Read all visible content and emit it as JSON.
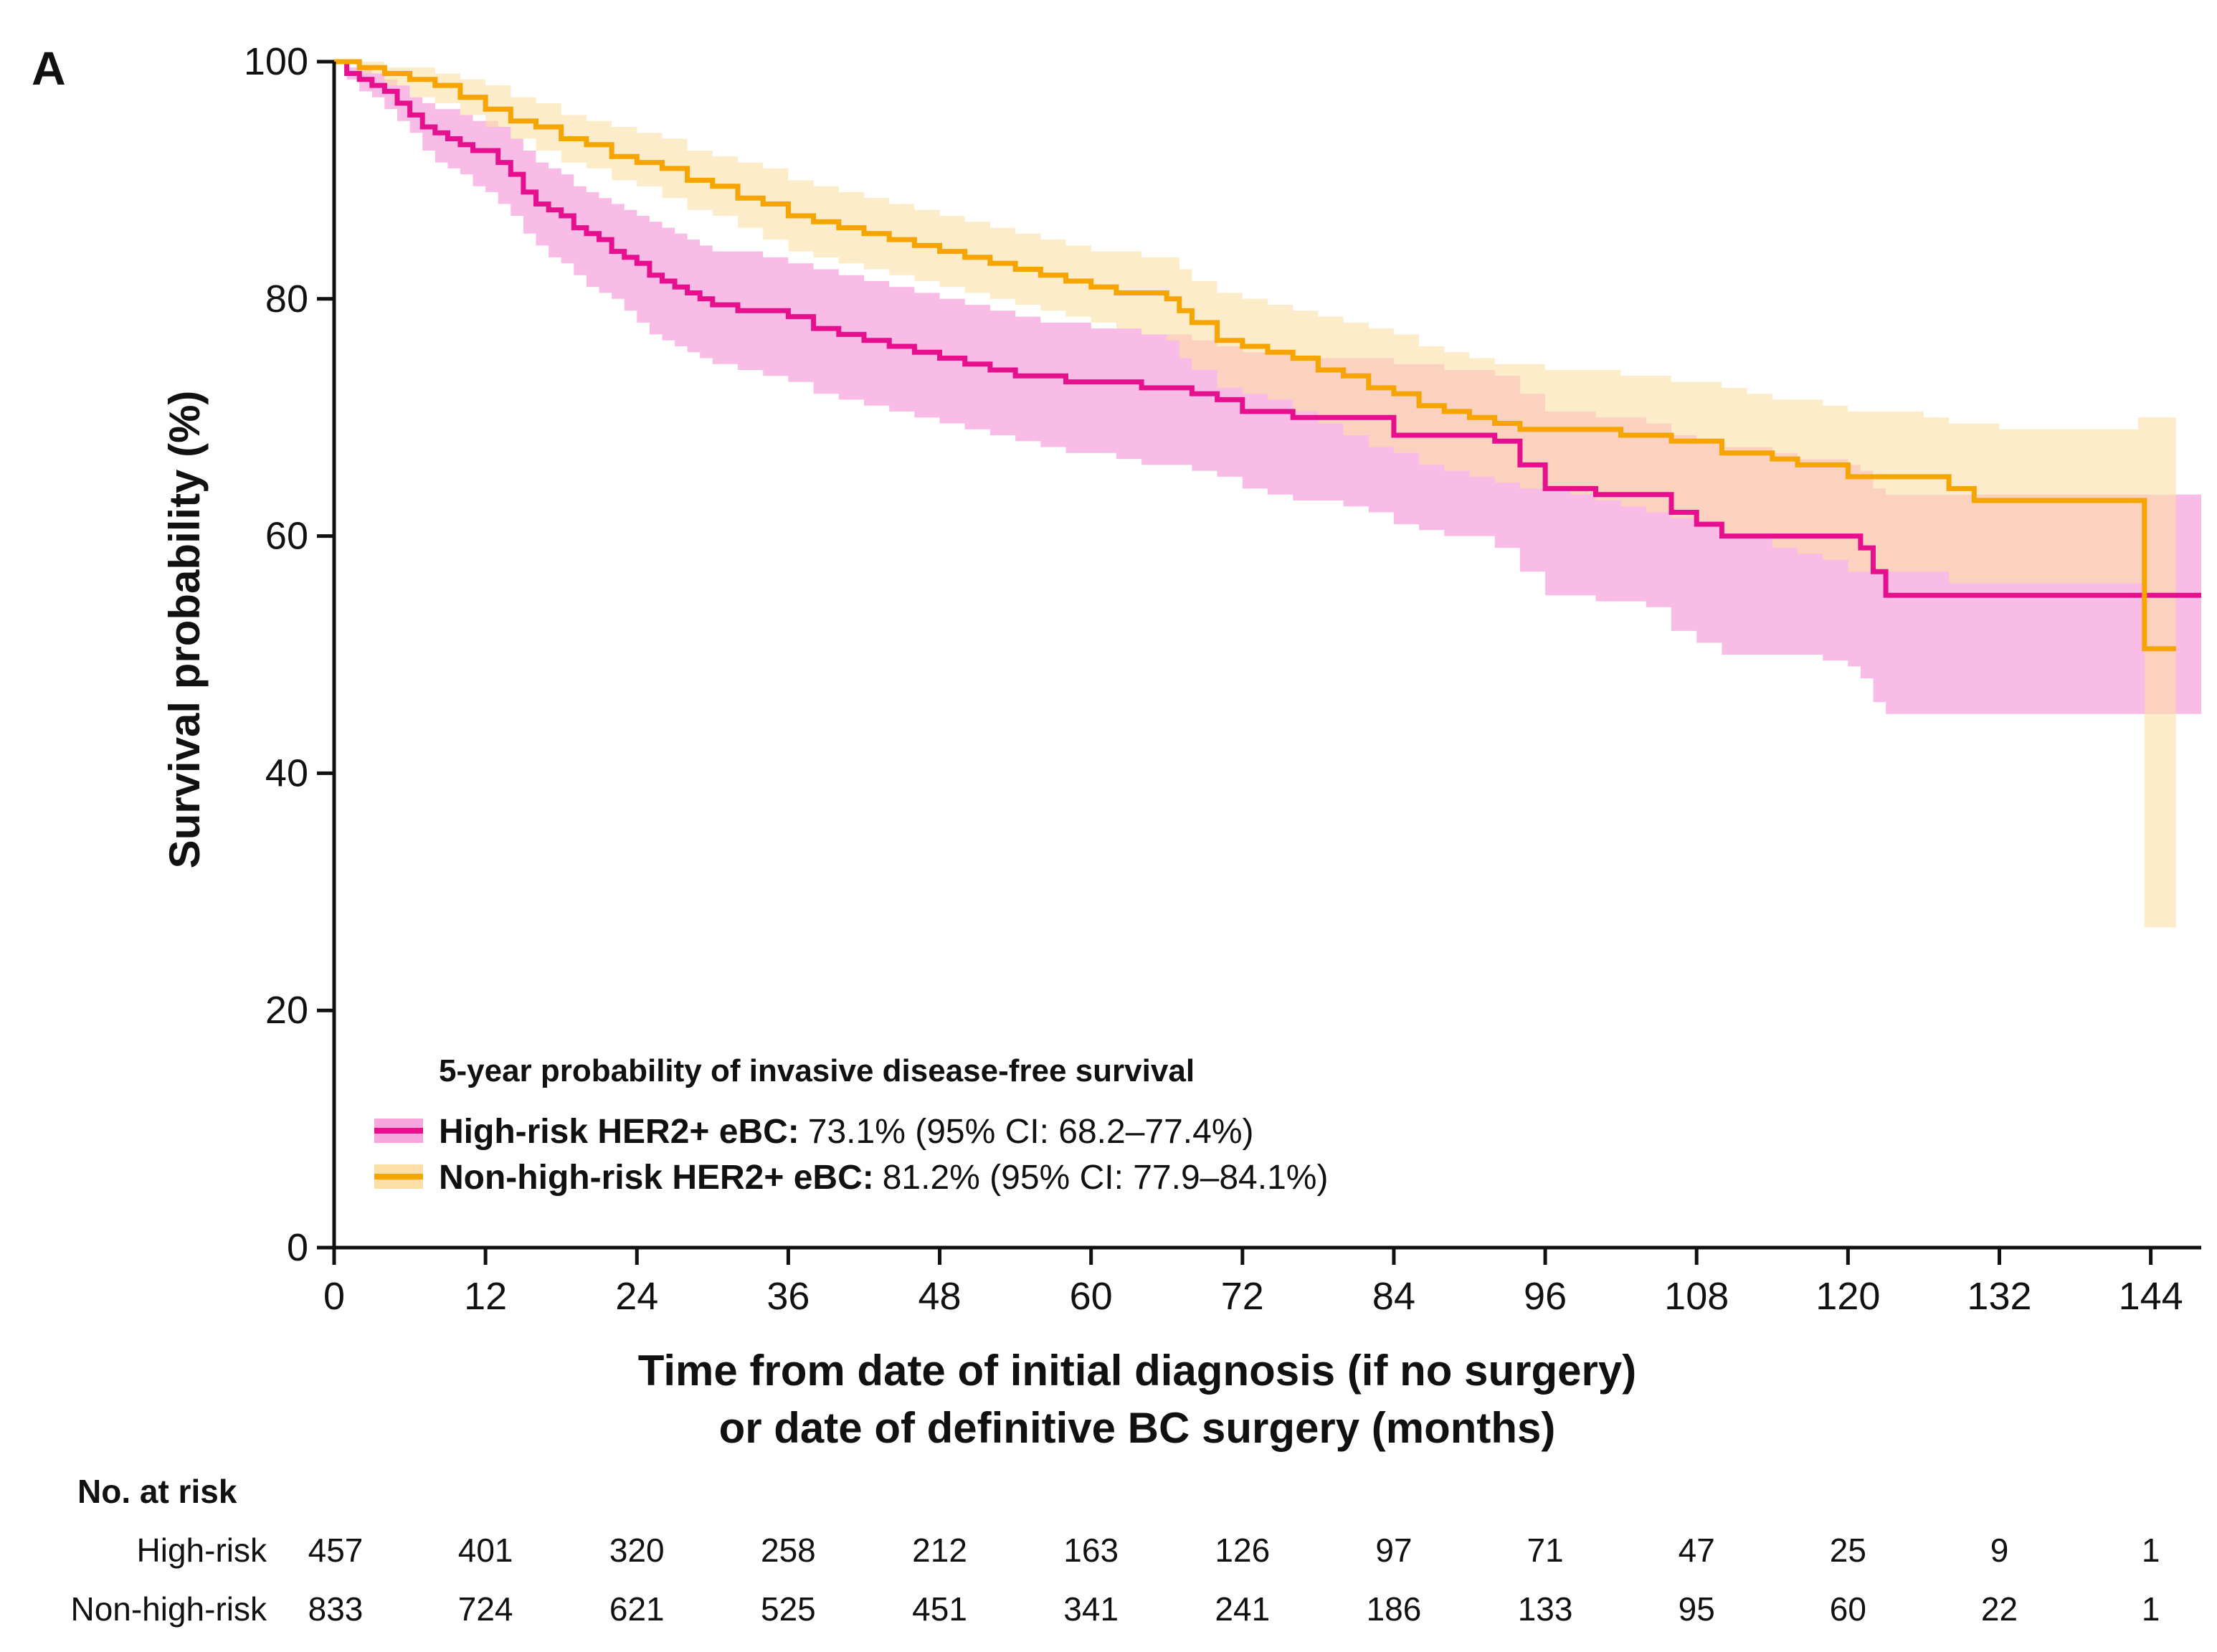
{
  "chart_data": {
    "type": "line",
    "panel_label": "A",
    "xlabel_line1": "Time from date of initial diagnosis (if no surgery)",
    "xlabel_line2": "or date of definitive BC surgery (months)",
    "ylabel": "Survival probability (%)",
    "xlim": [
      0,
      148
    ],
    "ylim": [
      0,
      100
    ],
    "x_ticks": [
      "0",
      "12",
      "24",
      "36",
      "48",
      "60",
      "72",
      "84",
      "96",
      "108",
      "120",
      "132",
      "144"
    ],
    "y_ticks": [
      "0",
      "20",
      "40",
      "60",
      "80",
      "100"
    ],
    "legend": {
      "title": "5-year probability of invasive disease-free survival",
      "position": "lower-left",
      "entries": [
        {
          "label": "High-risk HER2+ eBC:",
          "detail": "73.1% (95% CI: 68.2–77.4%)",
          "color": "#E6108F"
        },
        {
          "label": "Non-high-risk HER2+ eBC:",
          "detail": "81.2% (95% CI: 77.9–84.1%)",
          "color": "#F5A400"
        }
      ]
    },
    "series": [
      {
        "name": "High-risk HER2+ eBC",
        "color": "#E6108F",
        "band_color": "#F7A6DE",
        "x": [
          0,
          1,
          2,
          3,
          4,
          5,
          6,
          7,
          8,
          9,
          10,
          11,
          12,
          13,
          14,
          15,
          16,
          17,
          18,
          19,
          20,
          21,
          22,
          23,
          24,
          25,
          26,
          27,
          28,
          29,
          30,
          32,
          34,
          36,
          38,
          40,
          42,
          44,
          46,
          48,
          50,
          52,
          54,
          56,
          58,
          60,
          62,
          64,
          66,
          68,
          70,
          72,
          74,
          76,
          78,
          80,
          82,
          84,
          86,
          88,
          90,
          92,
          94,
          96,
          98,
          100,
          102,
          104,
          106,
          108,
          110,
          112,
          114,
          116,
          118,
          120,
          121,
          122,
          123,
          130,
          140,
          148
        ],
        "y": [
          100,
          99,
          98.5,
          98,
          97.5,
          96.5,
          95.5,
          94.5,
          94,
          93.5,
          93,
          92.5,
          92.5,
          91.5,
          90.5,
          89,
          88,
          87.5,
          87,
          86,
          85.5,
          85,
          84,
          83.5,
          83,
          82,
          81.5,
          81,
          80.5,
          80,
          79.5,
          79,
          79,
          78.5,
          77.5,
          77,
          76.5,
          76,
          75.5,
          75,
          74.5,
          74,
          73.5,
          73.5,
          73,
          73,
          73,
          72.5,
          72.5,
          72,
          71.5,
          70.5,
          70.5,
          70,
          70,
          70,
          70,
          68.5,
          68.5,
          68.5,
          68.5,
          68,
          66,
          64,
          64,
          63.5,
          63.5,
          63.5,
          62,
          61,
          60,
          60,
          60,
          60,
          60,
          60,
          59,
          57,
          55,
          55,
          55,
          55
        ],
        "lower": [
          100,
          98.5,
          97.5,
          97,
          96,
          95,
          94,
          92.5,
          91.5,
          91,
          90.5,
          89.5,
          89,
          88,
          87,
          85.5,
          84.5,
          83.5,
          83,
          82,
          81,
          80.5,
          80,
          79,
          78,
          77,
          76.5,
          76,
          75.5,
          75,
          74.5,
          74,
          73.5,
          73,
          72,
          71.5,
          71,
          70.5,
          70,
          69.5,
          69,
          68.5,
          68,
          67.5,
          67,
          67,
          66.5,
          66,
          66,
          65.5,
          65,
          64,
          63.5,
          63,
          63,
          62.5,
          62,
          61,
          60.5,
          60,
          60,
          59,
          57,
          55,
          55,
          54.5,
          54.5,
          54,
          52,
          51,
          50,
          50,
          50,
          50,
          49.5,
          49,
          48,
          46,
          45,
          45,
          45,
          45
        ],
        "upper": [
          100,
          99.5,
          99.5,
          99,
          98.5,
          98,
          97,
          96.5,
          96,
          96,
          95.5,
          95,
          95,
          94.5,
          93.5,
          92.5,
          91.5,
          91,
          90.5,
          89.5,
          89,
          88.5,
          88,
          87.5,
          87,
          86.5,
          86,
          85.5,
          85,
          84.5,
          84,
          84,
          83.5,
          83,
          82.5,
          82,
          81.5,
          81,
          80.5,
          80,
          79.5,
          79,
          78.5,
          78,
          78,
          77.5,
          77.5,
          77,
          77,
          76.5,
          76,
          75.5,
          75.5,
          75,
          75,
          75,
          75,
          74.5,
          74.5,
          74,
          74,
          73.5,
          72,
          70.5,
          70.5,
          70,
          70,
          69.5,
          68.5,
          68,
          67.5,
          67.5,
          67,
          66.5,
          66.5,
          66,
          65.5,
          64,
          63.5,
          63.5,
          63.5,
          63.5
        ]
      },
      {
        "name": "Non-high-risk HER2+ eBC",
        "color": "#F5A400",
        "band_color": "#FBDFA6",
        "x": [
          0,
          2,
          4,
          6,
          8,
          10,
          12,
          14,
          16,
          18,
          20,
          22,
          24,
          26,
          28,
          30,
          32,
          34,
          36,
          38,
          40,
          42,
          44,
          46,
          48,
          50,
          52,
          54,
          56,
          58,
          60,
          62,
          64,
          66,
          67,
          68,
          70,
          72,
          74,
          76,
          78,
          80,
          82,
          84,
          86,
          88,
          90,
          92,
          94,
          96,
          98,
          100,
          102,
          104,
          106,
          108,
          110,
          112,
          114,
          116,
          118,
          120,
          122,
          124,
          126,
          128,
          130,
          132,
          134,
          136,
          138,
          140,
          143,
          143.5,
          146
        ],
        "y": [
          100,
          99.5,
          99,
          98.5,
          98,
          97,
          96,
          95,
          94.5,
          93.5,
          93,
          92,
          91.5,
          91,
          90,
          89.5,
          88.5,
          88,
          87,
          86.5,
          86,
          85.5,
          85,
          84.5,
          84,
          83.5,
          83,
          82.5,
          82,
          81.5,
          81,
          80.5,
          80.5,
          80,
          79,
          78,
          76.5,
          76,
          75.5,
          75,
          74,
          73.5,
          72.5,
          72,
          71,
          70.5,
          70,
          69.5,
          69,
          69,
          69,
          69,
          68.5,
          68.5,
          68,
          68,
          67,
          67,
          66.5,
          66,
          66,
          65,
          65,
          65,
          65,
          64,
          63,
          63,
          63,
          63,
          63,
          63,
          63,
          50.5,
          50.5
        ],
        "lower": [
          100,
          99,
          98,
          97,
          96.5,
          95.5,
          94.5,
          93.5,
          92.5,
          91.5,
          91,
          90,
          89.5,
          88.5,
          87.5,
          87,
          86,
          85,
          84,
          83.5,
          83,
          82.5,
          82,
          81.5,
          81,
          80.5,
          80,
          79.5,
          79,
          78.5,
          78,
          77.5,
          77,
          76.5,
          75,
          74,
          72.5,
          72,
          71.5,
          70.5,
          69.5,
          68.5,
          67.5,
          67,
          66,
          65.5,
          65,
          64.5,
          64,
          64,
          63.5,
          63,
          62.5,
          62,
          61.5,
          61,
          60,
          60,
          59,
          58.5,
          58,
          57,
          57,
          57,
          57,
          56,
          56,
          56,
          56,
          56,
          56,
          56,
          56,
          27,
          27
        ],
        "upper": [
          100,
          100,
          99.5,
          99.5,
          99,
          98.5,
          98,
          97,
          96.5,
          95.5,
          95,
          94.5,
          94,
          93.5,
          92.5,
          92,
          91.5,
          91,
          90,
          89.5,
          89,
          88.5,
          88,
          87.5,
          87,
          86.5,
          86,
          85.5,
          85,
          84.5,
          84,
          84,
          83.5,
          83.5,
          82.5,
          81.5,
          80.5,
          80,
          79.5,
          79,
          78.5,
          78,
          77.5,
          77,
          76,
          75.5,
          75,
          74.5,
          74.5,
          74,
          74,
          74,
          73.5,
          73.5,
          73,
          73,
          72.5,
          72,
          71.5,
          71.5,
          71,
          70.5,
          70.5,
          70.5,
          70,
          69.5,
          69.5,
          69,
          69,
          69,
          69,
          69,
          70,
          70,
          70
        ]
      }
    ],
    "risk_table": {
      "title": "No. at risk",
      "rows": [
        {
          "label": "High-risk",
          "values": [
            "457",
            "401",
            "320",
            "258",
            "212",
            "163",
            "126",
            "97",
            "71",
            "47",
            "25",
            "9",
            "1"
          ]
        },
        {
          "label": "Non-high-risk",
          "values": [
            "833",
            "724",
            "621",
            "525",
            "451",
            "341",
            "241",
            "186",
            "133",
            "95",
            "60",
            "22",
            "1"
          ]
        }
      ]
    }
  }
}
